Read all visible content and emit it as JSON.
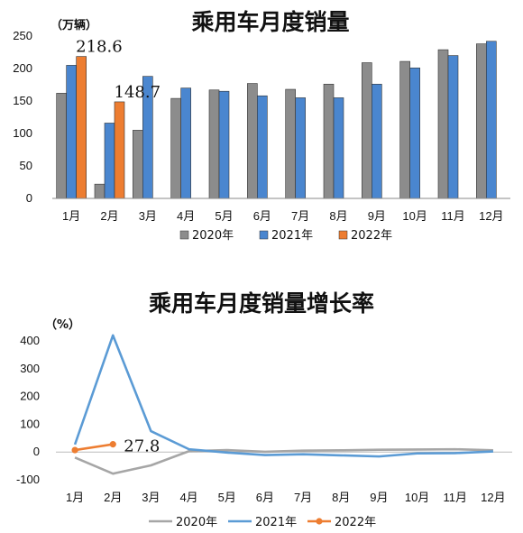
{
  "chart_data": [
    {
      "type": "bar",
      "title": "乘用车月度销量",
      "unit_label": "（万辆）",
      "categories": [
        "1月",
        "2月",
        "3月",
        "4月",
        "5月",
        "6月",
        "7月",
        "8月",
        "9月",
        "10月",
        "11月",
        "12月"
      ],
      "ylim": [
        0,
        250
      ],
      "yticks": [
        0,
        50,
        100,
        150,
        200,
        250
      ],
      "series": [
        {
          "name": "2020年",
          "color": "#8c8c8c",
          "values": [
            162,
            22,
            105,
            154,
            167,
            177,
            168,
            176,
            209,
            211,
            229,
            238
          ]
        },
        {
          "name": "2021年",
          "color": "#4a86cf",
          "values": [
            205,
            116,
            188,
            170,
            165,
            158,
            155,
            155,
            176,
            201,
            220,
            242
          ]
        },
        {
          "name": "2022年",
          "color": "#ed7d31",
          "values": [
            218.6,
            148.7,
            null,
            null,
            null,
            null,
            null,
            null,
            null,
            null,
            null,
            null
          ]
        }
      ],
      "data_labels": [
        {
          "series": "2022年",
          "category": "1月",
          "text": "218.6"
        },
        {
          "series": "2022年",
          "category": "2月",
          "text": "148.7"
        }
      ],
      "legend_position": "bottom",
      "grid": false
    },
    {
      "type": "line",
      "title": "乘用车月度销量增长率",
      "unit_label": "（%）",
      "categories": [
        "1月",
        "2月",
        "3月",
        "4月",
        "5月",
        "6月",
        "7月",
        "8月",
        "9月",
        "10月",
        "11月",
        "12月"
      ],
      "ylim": [
        -100,
        400
      ],
      "yticks": [
        -100,
        0,
        100,
        200,
        300,
        400
      ],
      "series": [
        {
          "name": "2020年",
          "color": "#a6a6a6",
          "values": [
            -20,
            -78,
            -48,
            3,
            7,
            1,
            5,
            6,
            8,
            9,
            10,
            6
          ]
        },
        {
          "name": "2021年",
          "color": "#5b9bd5",
          "values": [
            27,
            420,
            75,
            10,
            -2,
            -11,
            -8,
            -12,
            -16,
            -5,
            -4,
            2
          ]
        },
        {
          "name": "2022年",
          "color": "#ed7d31",
          "markers": true,
          "values": [
            7,
            27.8,
            null,
            null,
            null,
            null,
            null,
            null,
            null,
            null,
            null,
            null
          ]
        }
      ],
      "data_labels": [
        {
          "series": "2022年",
          "category": "2月",
          "text": "27.8"
        }
      ],
      "legend_position": "bottom",
      "grid": false
    }
  ]
}
